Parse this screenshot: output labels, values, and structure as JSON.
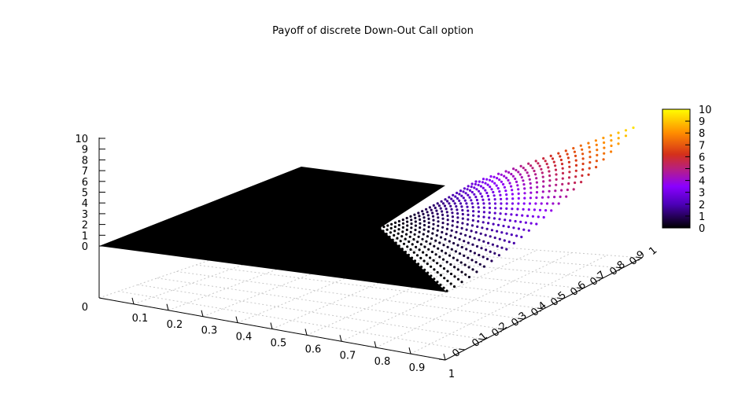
{
  "chart_data": {
    "type": "surface3d",
    "title": "Payoff of discrete Down-Out Call option",
    "xlabel": "",
    "ylabel": "",
    "zlabel": "",
    "x_ticks": [
      "0.1",
      "0.2",
      "0.3",
      "0.4",
      "0.5",
      "0.6",
      "0.7",
      "0.8",
      "0.9",
      "1"
    ],
    "y_ticks": [
      "0",
      "0.1",
      "0.2",
      "0.3",
      "0.4",
      "0.5",
      "0.6",
      "0.7",
      "0.8",
      "0.9",
      "1"
    ],
    "z_ticks": [
      "0",
      "1",
      "2",
      "3",
      "4",
      "5",
      "6",
      "7",
      "8",
      "9",
      "10"
    ],
    "base_z_label": "0",
    "xlim": [
      0.05,
      1
    ],
    "ylim": [
      0,
      1
    ],
    "zlim": [
      0,
      10
    ],
    "colorbar": {
      "range": [
        0,
        10
      ],
      "ticks": [
        "0",
        "1",
        "2",
        "3",
        "4",
        "5",
        "6",
        "7",
        "8",
        "9",
        "10"
      ],
      "palette": [
        "#000000",
        "#7a00ff",
        "#d0266a",
        "#ff8000",
        "#ffff00"
      ]
    },
    "surface": {
      "description_points": [
        {
          "region": "flat zero payoff",
          "value": 0
        },
        {
          "region": "max corner",
          "value": 9.5
        }
      ],
      "flat_color": "#000000"
    }
  }
}
